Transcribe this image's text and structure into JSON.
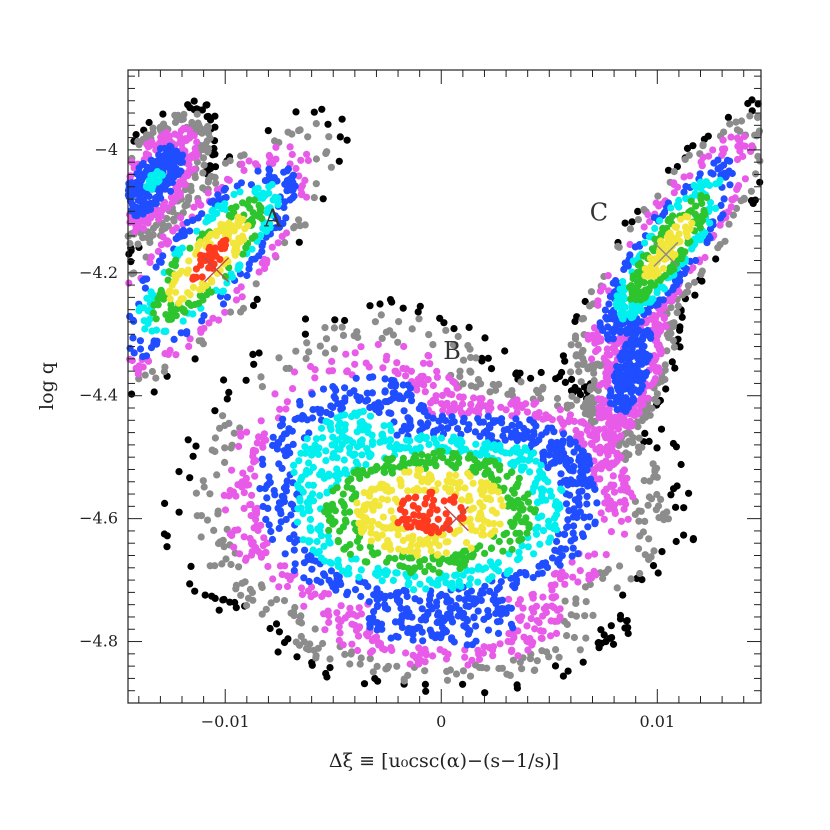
{
  "chart_data": {
    "type": "scatter",
    "xlabel": "Δξ ≡ [u₀csc(α)−(s−1/s)]",
    "ylabel": "log q",
    "xlim": [
      -0.0145,
      0.0148
    ],
    "ylim": [
      -4.9,
      -3.87
    ],
    "x_ticks": [
      {
        "value": -0.01,
        "label": "-0.01"
      },
      {
        "value": 0,
        "label": "0"
      },
      {
        "value": 0.01,
        "label": "0.01"
      }
    ],
    "y_ticks": [
      {
        "value": -4.0,
        "label": "-4"
      },
      {
        "value": -4.2,
        "label": "-4.2"
      },
      {
        "value": -4.4,
        "label": "-4.4"
      },
      {
        "value": -4.6,
        "label": "-4.6"
      },
      {
        "value": -4.8,
        "label": "-4.8"
      }
    ],
    "grid": false,
    "colors": {
      "black": "#000000",
      "gray": "#8c8c8c",
      "magenta": "#e85ae8",
      "blue": "#1f4dff",
      "cyan": "#00f0f0",
      "green": "#2ec42e",
      "yellow": "#f2e63a",
      "red": "#ff3a1e",
      "marker": "#c04a4a"
    },
    "regions": [
      {
        "label": "A",
        "x": -0.0078,
        "y": -4.125
      },
      {
        "label": "B",
        "x": 0.0005,
        "y": -4.34
      },
      {
        "label": "C",
        "x": 0.0073,
        "y": -4.115
      }
    ],
    "best_fit_markers": [
      {
        "region": "A",
        "x": -0.0104,
        "y": -4.195
      },
      {
        "region": "B",
        "x": 0.0007,
        "y": -4.6
      },
      {
        "region": "C",
        "x": 0.0104,
        "y": -4.17
      }
    ]
  }
}
